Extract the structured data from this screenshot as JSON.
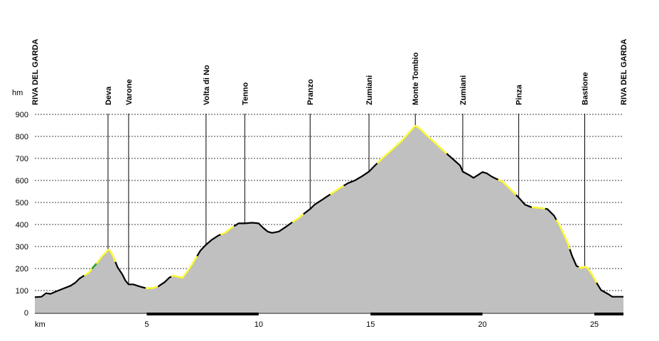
{
  "chart_data": {
    "type": "area",
    "title": "",
    "xlabel": "km",
    "ylabel": "hm",
    "xlim": [
      0,
      26.3
    ],
    "ylim": [
      0,
      900
    ],
    "x_ticks": [
      5,
      10,
      15,
      20,
      25
    ],
    "y_ticks": [
      0,
      100,
      200,
      300,
      400,
      500,
      600,
      700,
      800,
      900
    ],
    "grid": true,
    "fill_color": "#c0c0c0",
    "line_color": "#000000",
    "highlight_color": "#ffff33",
    "alt_color": "#22aa22",
    "waypoints": [
      {
        "name": "RIVA DEL GARDA",
        "x": 0.0
      },
      {
        "name": "Deva",
        "x": 3.27
      },
      {
        "name": "Varone",
        "x": 4.19
      },
      {
        "name": "Volta di No",
        "x": 7.65
      },
      {
        "name": "Tenno",
        "x": 9.38
      },
      {
        "name": "Pranzo",
        "x": 12.3
      },
      {
        "name": "Zumiani",
        "x": 14.93
      },
      {
        "name": "Monte Tombio",
        "x": 17.0
      },
      {
        "name": "Zumiani",
        "x": 19.12
      },
      {
        "name": "Pinza",
        "x": 21.62
      },
      {
        "name": "Bastione",
        "x": 24.57
      },
      {
        "name": "RIVA DEL GARDA",
        "x": 26.3
      }
    ],
    "profile": [
      [
        0.0,
        70
      ],
      [
        0.3,
        72
      ],
      [
        0.5,
        88
      ],
      [
        0.7,
        85
      ],
      [
        1.0,
        98
      ],
      [
        1.3,
        110
      ],
      [
        1.6,
        122
      ],
      [
        1.8,
        135
      ],
      [
        2.0,
        155
      ],
      [
        2.2,
        168
      ],
      [
        2.4,
        180
      ],
      [
        2.6,
        205
      ],
      [
        2.8,
        228
      ],
      [
        3.0,
        255
      ],
      [
        3.2,
        275
      ],
      [
        3.27,
        285
      ],
      [
        3.35,
        282
      ],
      [
        3.5,
        255
      ],
      [
        3.7,
        205
      ],
      [
        3.9,
        175
      ],
      [
        4.05,
        145
      ],
      [
        4.19,
        128
      ],
      [
        4.4,
        128
      ],
      [
        4.7,
        118
      ],
      [
        5.0,
        110
      ],
      [
        5.3,
        112
      ],
      [
        5.5,
        118
      ],
      [
        5.8,
        138
      ],
      [
        6.0,
        158
      ],
      [
        6.2,
        168
      ],
      [
        6.4,
        162
      ],
      [
        6.6,
        158
      ],
      [
        6.8,
        185
      ],
      [
        7.0,
        215
      ],
      [
        7.2,
        248
      ],
      [
        7.4,
        282
      ],
      [
        7.65,
        308
      ],
      [
        7.9,
        330
      ],
      [
        8.2,
        350
      ],
      [
        8.5,
        362
      ],
      [
        8.8,
        385
      ],
      [
        9.1,
        405
      ],
      [
        9.38,
        405
      ],
      [
        9.7,
        408
      ],
      [
        10.0,
        405
      ],
      [
        10.2,
        385
      ],
      [
        10.4,
        368
      ],
      [
        10.6,
        362
      ],
      [
        10.9,
        368
      ],
      [
        11.2,
        388
      ],
      [
        11.5,
        410
      ],
      [
        11.8,
        430
      ],
      [
        12.1,
        455
      ],
      [
        12.3,
        470
      ],
      [
        12.5,
        490
      ],
      [
        12.8,
        510
      ],
      [
        13.1,
        530
      ],
      [
        13.4,
        550
      ],
      [
        13.7,
        570
      ],
      [
        14.0,
        588
      ],
      [
        14.3,
        600
      ],
      [
        14.6,
        618
      ],
      [
        14.93,
        640
      ],
      [
        15.2,
        668
      ],
      [
        15.5,
        698
      ],
      [
        15.8,
        725
      ],
      [
        16.1,
        752
      ],
      [
        16.4,
        780
      ],
      [
        16.7,
        815
      ],
      [
        17.0,
        848
      ],
      [
        17.2,
        835
      ],
      [
        17.5,
        805
      ],
      [
        17.8,
        778
      ],
      [
        18.1,
        750
      ],
      [
        18.4,
        722
      ],
      [
        18.7,
        695
      ],
      [
        19.0,
        668
      ],
      [
        19.12,
        640
      ],
      [
        19.4,
        625
      ],
      [
        19.6,
        612
      ],
      [
        19.8,
        625
      ],
      [
        20.0,
        638
      ],
      [
        20.2,
        632
      ],
      [
        20.4,
        618
      ],
      [
        20.6,
        608
      ],
      [
        20.9,
        595
      ],
      [
        21.2,
        565
      ],
      [
        21.62,
        522
      ],
      [
        21.9,
        490
      ],
      [
        22.2,
        478
      ],
      [
        22.6,
        475
      ],
      [
        22.9,
        470
      ],
      [
        23.2,
        440
      ],
      [
        23.5,
        385
      ],
      [
        23.8,
        318
      ],
      [
        24.0,
        258
      ],
      [
        24.2,
        212
      ],
      [
        24.4,
        202
      ],
      [
        24.57,
        208
      ],
      [
        24.7,
        202
      ],
      [
        24.9,
        172
      ],
      [
        25.1,
        135
      ],
      [
        25.3,
        102
      ],
      [
        25.6,
        85
      ],
      [
        25.8,
        72
      ],
      [
        26.3,
        72
      ]
    ],
    "highlight_ranges": [
      [
        2.2,
        2.55
      ],
      [
        2.75,
        3.6
      ],
      [
        4.95,
        5.5
      ],
      [
        6.1,
        7.25
      ],
      [
        8.3,
        8.9
      ],
      [
        11.5,
        12.0
      ],
      [
        13.2,
        13.8
      ],
      [
        15.3,
        18.4
      ],
      [
        20.7,
        21.5
      ],
      [
        22.2,
        22.8
      ],
      [
        23.3,
        23.9
      ],
      [
        24.3,
        25.1
      ]
    ],
    "alt_ranges": [
      [
        2.55,
        2.75
      ]
    ],
    "scale_bar": [
      [
        5,
        10
      ],
      [
        15,
        20
      ],
      [
        25,
        26.3
      ]
    ]
  }
}
